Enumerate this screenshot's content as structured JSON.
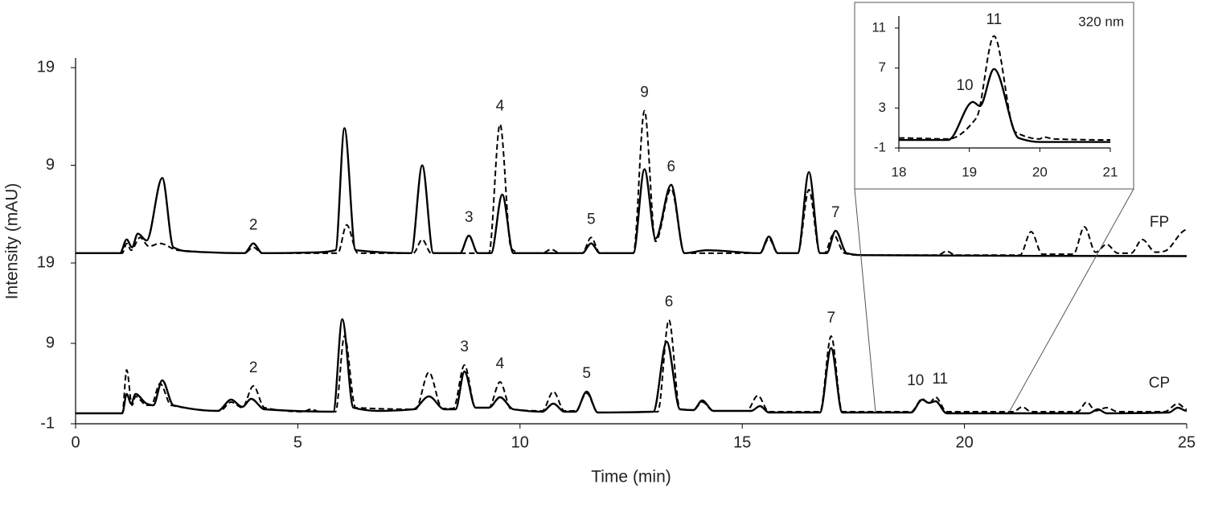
{
  "chart_data": {
    "type": "line",
    "xlabel": "Time (min)",
    "ylabel": "Intensity (mAU)",
    "xlim": [
      0,
      25
    ],
    "xticks": [
      0,
      5,
      10,
      15,
      20,
      25
    ],
    "panels": [
      {
        "label": "FP",
        "ylim": [
          -1,
          20
        ],
        "yticks": [
          9,
          19
        ],
        "series": [
          {
            "style": "solid",
            "color": "#000000",
            "x": [
              0,
              1.0,
              1.15,
              1.27,
              1.4,
              1.6,
              1.95,
              2.2,
              2.5,
              3.8,
              4.0,
              4.2,
              5.5,
              5.85,
              6.05,
              6.3,
              7.55,
              7.8,
              8.05,
              8.65,
              8.85,
              9.05,
              9.35,
              9.6,
              9.85,
              11.4,
              11.6,
              11.8,
              12.55,
              12.8,
              13.05,
              13.4,
              13.7,
              14.2,
              15.4,
              15.6,
              15.8,
              16.25,
              16.5,
              16.75,
              16.9,
              17.1,
              17.35,
              17.7,
              25
            ],
            "values": [
              0,
              0,
              1.4,
              0.6,
              2.0,
              1.3,
              7.7,
              0.6,
              0.2,
              0,
              1.0,
              0,
              0.1,
              0.3,
              12.8,
              0.3,
              0,
              9.0,
              0,
              0,
              1.8,
              0,
              0,
              6.0,
              0,
              0,
              1.0,
              0,
              0,
              8.6,
              1.5,
              7.0,
              0,
              0.3,
              0,
              1.7,
              0,
              0,
              8.3,
              0,
              0,
              2.3,
              0,
              -0.2,
              -0.3
            ]
          },
          {
            "style": "dashed",
            "color": "#000000",
            "x": [
              0,
              1.05,
              1.15,
              1.25,
              1.45,
              1.65,
              1.9,
              2.3,
              3.8,
              4.0,
              4.2,
              5.9,
              6.1,
              6.35,
              7.6,
              7.8,
              8.0,
              9.3,
              9.55,
              9.8,
              10.0,
              10.5,
              10.7,
              10.9,
              11.4,
              11.6,
              11.8,
              12.55,
              12.8,
              13.05,
              13.4,
              13.7,
              15.4,
              15.6,
              15.8,
              16.25,
              16.5,
              16.75,
              16.85,
              17.05,
              17.3,
              17.6,
              19.4,
              19.6,
              19.8,
              21.25,
              21.5,
              21.75,
              22.45,
              22.7,
              22.95,
              23.2,
              23.45,
              23.75,
              24.0,
              24.3,
              24.5,
              25
            ],
            "values": [
              0,
              0,
              1.0,
              0.3,
              1.6,
              0.7,
              1.0,
              0.3,
              0,
              0.6,
              0,
              0,
              2.9,
              0,
              0,
              1.4,
              0,
              0,
              13.2,
              0.5,
              0,
              0,
              0.4,
              0,
              0,
              1.6,
              0,
              0,
              14.6,
              1.2,
              6.6,
              0,
              0,
              1.5,
              0,
              0,
              6.5,
              0,
              0,
              1.9,
              0,
              -0.2,
              -0.2,
              0.2,
              -0.2,
              -0.2,
              2.2,
              -0.1,
              -0.1,
              2.7,
              0.1,
              0.9,
              0,
              0,
              1.4,
              0.1,
              0.2,
              2.4
            ]
          }
        ],
        "annotations": [
          {
            "text": "2",
            "x": 4.0
          },
          {
            "text": "3",
            "x": 8.85
          },
          {
            "text": "4",
            "x": 9.55
          },
          {
            "text": "5",
            "x": 11.6
          },
          {
            "text": "9",
            "x": 12.8
          },
          {
            "text": "6",
            "x": 13.4
          },
          {
            "text": "7",
            "x": 17.1
          }
        ]
      },
      {
        "label": "CP",
        "ylim": [
          -1,
          19
        ],
        "yticks": [
          -1,
          9,
          19
        ],
        "series": [
          {
            "style": "solid",
            "color": "#000000",
            "x": [
              0,
              1.05,
              1.15,
              1.25,
              1.35,
              1.6,
              1.75,
              1.95,
              2.2,
              3.2,
              3.5,
              3.75,
              3.95,
              4.25,
              5.8,
              6.0,
              6.25,
              6.8,
              7.6,
              7.95,
              8.3,
              8.55,
              8.75,
              9.0,
              9.3,
              9.55,
              9.85,
              10.5,
              10.75,
              11.0,
              11.25,
              11.5,
              11.75,
              13.0,
              13.3,
              13.6,
              13.9,
              14.1,
              14.35,
              15.2,
              15.4,
              15.6,
              16.75,
              17.0,
              17.25,
              18.8,
              19.05,
              19.2,
              19.35,
              19.6,
              22.8,
              23.0,
              23.2,
              24.6,
              24.8,
              25
            ],
            "values": [
              0.3,
              0.3,
              2.7,
              1.5,
              2.7,
              1.5,
              1.3,
              4.4,
              1.3,
              0.6,
              2.0,
              1.1,
              2.1,
              0.8,
              0.5,
              12.0,
              1.0,
              0.6,
              0.8,
              2.4,
              0.8,
              0.8,
              5.5,
              1.0,
              1.0,
              2.3,
              0.8,
              0.5,
              1.5,
              0.5,
              0.5,
              3.0,
              0.4,
              0.5,
              9.2,
              0.8,
              0.7,
              1.9,
              0.6,
              0.6,
              1.2,
              0.4,
              0.4,
              8.4,
              0.4,
              0.4,
              2.0,
              1.6,
              1.8,
              0.3,
              0.3,
              0.8,
              0.3,
              0.4,
              1.0,
              0.6
            ]
          },
          {
            "style": "dashed",
            "color": "#000000",
            "x": [
              0,
              1.05,
              1.15,
              1.27,
              1.35,
              1.6,
              1.7,
              1.9,
              2.15,
              3.25,
              3.5,
              3.75,
              4.0,
              4.25,
              5.1,
              5.3,
              5.5,
              5.85,
              6.05,
              6.3,
              7.65,
              7.95,
              8.25,
              8.5,
              8.75,
              9.0,
              9.3,
              9.55,
              9.8,
              10.5,
              10.75,
              11.0,
              11.25,
              11.5,
              11.75,
              13.1,
              13.35,
              13.6,
              13.9,
              14.1,
              14.35,
              15.1,
              15.35,
              15.6,
              16.75,
              17.0,
              17.25,
              18.8,
              19.05,
              19.2,
              19.35,
              19.6,
              21.1,
              21.3,
              21.5,
              22.55,
              22.75,
              22.95,
              23.2,
              23.45,
              24.5,
              24.8,
              25
            ],
            "values": [
              0.3,
              0.3,
              5.7,
              1.3,
              2.4,
              1.3,
              1.3,
              4.0,
              1.3,
              0.6,
              1.7,
              1.0,
              3.7,
              1.0,
              0.5,
              0.8,
              0.5,
              0.5,
              9.9,
              1.0,
              0.8,
              5.4,
              0.9,
              0.9,
              6.3,
              1.0,
              1.0,
              4.2,
              0.8,
              0.6,
              3.0,
              0.6,
              0.6,
              2.8,
              0.4,
              0.5,
              11.9,
              0.8,
              0.7,
              1.7,
              0.6,
              0.6,
              2.5,
              0.5,
              0.5,
              9.9,
              0.5,
              0.5,
              2.1,
              1.5,
              2.3,
              0.5,
              0.5,
              1.1,
              0.5,
              0.5,
              1.7,
              0.6,
              1.0,
              0.5,
              0.5,
              1.5,
              0.8
            ]
          }
        ],
        "annotations": [
          {
            "text": "2",
            "x": 4.0
          },
          {
            "text": "3",
            "x": 8.75
          },
          {
            "text": "4",
            "x": 9.55
          },
          {
            "text": "5",
            "x": 11.5
          },
          {
            "text": "6",
            "x": 13.35
          },
          {
            "text": "7",
            "x": 17.0
          },
          {
            "text": "10",
            "x": 18.9
          },
          {
            "text": "11",
            "x": 19.45
          }
        ]
      }
    ],
    "inset": {
      "type": "line",
      "title": "320 nm",
      "xlim": [
        18,
        21
      ],
      "xticks": [
        18,
        19,
        20,
        21
      ],
      "ylim": [
        -1,
        12.2
      ],
      "yticks": [
        -1,
        3,
        7,
        11
      ],
      "series": [
        {
          "style": "solid",
          "color": "#000000",
          "x": [
            18,
            18.7,
            19.05,
            19.15,
            19.35,
            19.7,
            20.0,
            21
          ],
          "values": [
            -0.2,
            -0.2,
            3.6,
            3.2,
            6.9,
            0,
            -0.4,
            -0.4
          ]
        },
        {
          "style": "dashed",
          "color": "#000000",
          "x": [
            18,
            18.7,
            19.1,
            19.35,
            19.65,
            20.0,
            20.05,
            20.2,
            21
          ],
          "values": [
            0,
            -0.1,
            2.0,
            10.2,
            0.6,
            -0.1,
            0.1,
            -0.1,
            -0.2
          ]
        }
      ],
      "annotations": [
        {
          "text": "10",
          "x": 19.05
        },
        {
          "text": "11",
          "x": 19.35
        }
      ]
    }
  }
}
